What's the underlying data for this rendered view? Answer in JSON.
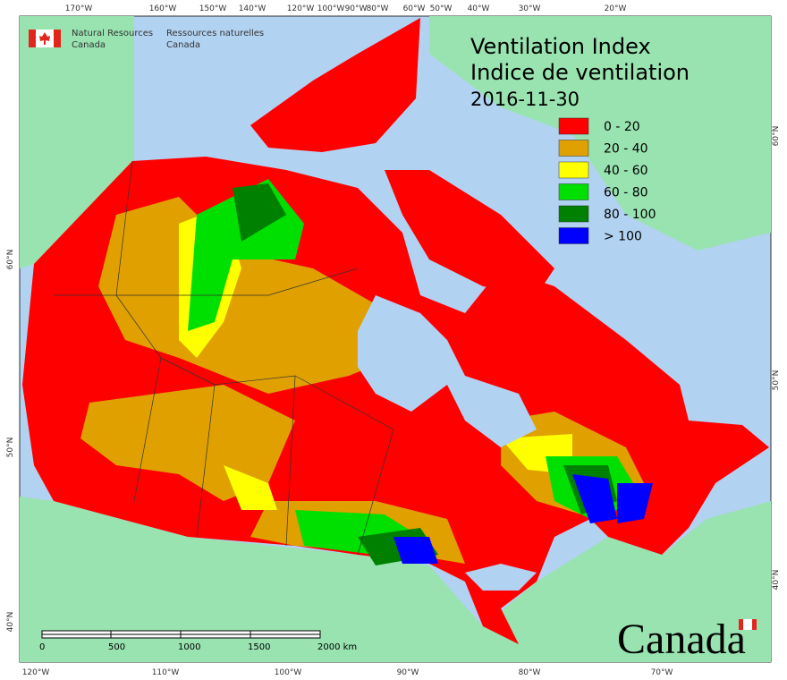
{
  "header": {
    "logo_en": [
      "Natural Resources",
      "Canada"
    ],
    "logo_fr": [
      "Ressources naturelles",
      "Canada"
    ]
  },
  "title": [
    "Ventilation Index",
    "Indice de ventilation",
    "2016-11-30"
  ],
  "legend": [
    {
      "label": "0 - 20",
      "color": "#ff0000"
    },
    {
      "label": "20 - 40",
      "color": "#dfa000"
    },
    {
      "label": "40 - 60",
      "color": "#ffff00"
    },
    {
      "label": "60 - 80",
      "color": "#00e000"
    },
    {
      "label": "80 - 100",
      "color": "#008000"
    },
    {
      "label": "> 100",
      "color": "#0000ff"
    }
  ],
  "graticule": {
    "top": [
      "170°W",
      "160°W",
      "150°W",
      "140°W",
      "120°W",
      "100°W",
      "90°W",
      "80°W",
      "60°W",
      "50°W",
      "40°W",
      "30°W",
      "20°W"
    ],
    "bottom": [
      "120°W",
      "110°W",
      "100°W",
      "90°W",
      "80°W",
      "70°W"
    ],
    "left": [
      "60°N",
      "50°N",
      "40°N"
    ],
    "right": [
      "60°N",
      "50°N",
      "40°N"
    ]
  },
  "scale_bar": {
    "labels": [
      "0",
      "500",
      "1000",
      "1500",
      "2000 km"
    ]
  },
  "wordmark": "Canada"
}
